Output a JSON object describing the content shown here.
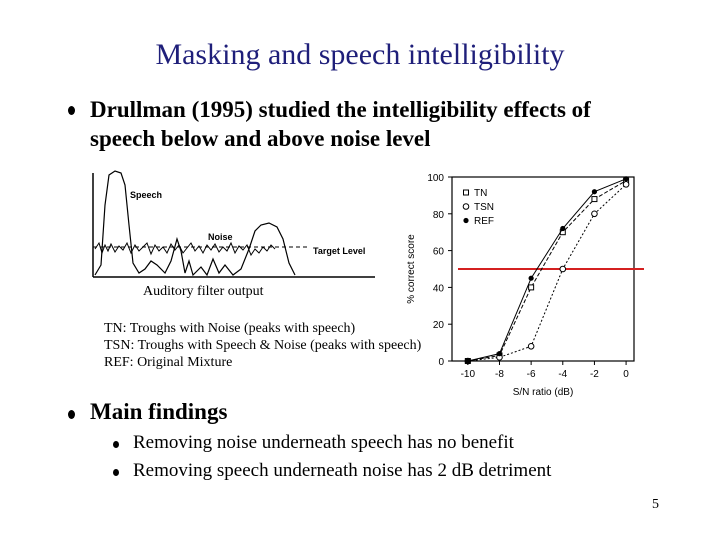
{
  "slide": {
    "title": "Masking and speech intelligibility",
    "bullet1": "Drullman (1995) studied the intelligibility effects of speech below and above noise level",
    "figure_caption": "Auditory filter output",
    "figure_labels": {
      "speech": "Speech",
      "noise": "Noise",
      "target_level": "Target Level"
    },
    "conditions": [
      "TN: Troughs with Noise (peaks with speech)",
      "TSN: Troughs with Speech & Noise (peaks with speech)",
      "REF: Original Mixture"
    ],
    "bullet2": "Main findings",
    "sub_bullets": [
      "Removing noise underneath speech has no benefit",
      "Removing speech underneath noise has 2 dB detriment"
    ],
    "page_number": "5",
    "colors": {
      "title": "#1f1f7a",
      "threshold_line": "#d42020"
    }
  },
  "chart_data": {
    "type": "line",
    "xlabel": "S/N ratio (dB)",
    "ylabel": "% correct score",
    "x": [
      -10,
      -8,
      -6,
      -4,
      -2,
      0
    ],
    "xticks": [
      "-10",
      "-8",
      "-6",
      "-4",
      "-2",
      "0"
    ],
    "yticks": [
      "0",
      "20",
      "40",
      "60",
      "80",
      "100"
    ],
    "xlim": [
      -11,
      0.5
    ],
    "ylim": [
      0,
      100
    ],
    "threshold_y": 50,
    "series": [
      {
        "name": "TN",
        "marker": "square",
        "values": [
          0,
          3,
          40,
          70,
          88,
          98
        ]
      },
      {
        "name": "TSN",
        "marker": "circle",
        "values": [
          0,
          2,
          8,
          50,
          80,
          96
        ]
      },
      {
        "name": "REF",
        "marker": "dot",
        "values": [
          0,
          4,
          45,
          72,
          92,
          99
        ]
      }
    ]
  }
}
